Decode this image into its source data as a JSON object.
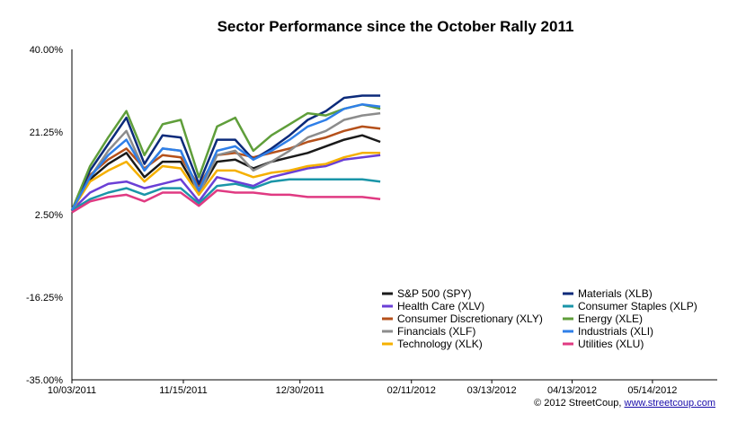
{
  "chart_data": {
    "type": "line",
    "title": "Sector Performance since the October Rally 2011",
    "xlabel": "",
    "ylabel": "",
    "ylim": [
      -35,
      40
    ],
    "y_ticks": [
      "40.00%",
      "21.25%",
      "2.50%",
      "-16.25%",
      "-35.00%"
    ],
    "x_tick_labels": [
      "10/03/2011",
      "11/15/2011",
      "12/30/2011",
      "02/11/2012",
      "03/13/2012",
      "04/13/2012",
      "05/14/2012"
    ],
    "x": [
      "10/03/2011",
      "10/10/2011",
      "10/17/2011",
      "10/24/2011",
      "10/31/2011",
      "11/07/2011",
      "11/14/2011",
      "11/21/2011",
      "11/28/2011",
      "12/05/2011",
      "12/12/2011",
      "12/19/2011",
      "12/26/2011",
      "01/02/2012",
      "01/09/2012",
      "01/16/2012",
      "01/23/2012",
      "01/30/2012"
    ],
    "grid": false,
    "legend_position": "bottom-right",
    "series": [
      {
        "name": "S&P 500 (SPY)",
        "color": "#1a1a1a",
        "values": [
          3.5,
          10.5,
          14.0,
          16.5,
          11.0,
          14.5,
          14.5,
          7.5,
          14.5,
          15.0,
          13.0,
          14.5,
          15.5,
          16.5,
          18.0,
          19.5,
          20.5,
          19.0
        ]
      },
      {
        "name": "Health Care (XLV)",
        "color": "#6a3fd6",
        "values": [
          3.5,
          7.5,
          9.5,
          10.0,
          8.5,
          9.5,
          10.5,
          5.5,
          11.0,
          10.0,
          9.0,
          11.0,
          12.0,
          13.0,
          13.5,
          15.0,
          15.5,
          16.0
        ]
      },
      {
        "name": "Consumer Discretionary (XLY)",
        "color": "#b5501a",
        "values": [
          3.5,
          11.5,
          15.0,
          17.5,
          13.0,
          16.0,
          15.5,
          9.0,
          16.0,
          16.5,
          15.5,
          16.5,
          17.5,
          19.0,
          20.0,
          21.5,
          22.5,
          22.0
        ]
      },
      {
        "name": "Financials (XLF)",
        "color": "#8c8c8c",
        "values": [
          3.5,
          11.0,
          17.0,
          21.5,
          12.5,
          17.5,
          17.0,
          7.0,
          16.0,
          17.0,
          12.5,
          14.5,
          17.0,
          20.0,
          21.5,
          24.0,
          25.0,
          25.5
        ]
      },
      {
        "name": "Technology (XLK)",
        "color": "#f5b000",
        "values": [
          3.5,
          10.0,
          12.5,
          14.5,
          10.0,
          13.5,
          13.0,
          7.0,
          12.5,
          12.5,
          11.0,
          12.0,
          12.5,
          13.5,
          14.0,
          15.5,
          16.5,
          16.5
        ]
      },
      {
        "name": "Materials (XLB)",
        "color": "#0b2a7a",
        "values": [
          3.5,
          12.5,
          18.5,
          24.5,
          14.0,
          20.5,
          20.0,
          9.5,
          19.5,
          19.5,
          15.0,
          17.5,
          20.5,
          24.0,
          26.0,
          29.0,
          29.5,
          29.5
        ]
      },
      {
        "name": "Consumer Staples (XLP)",
        "color": "#1a95a8",
        "values": [
          3.5,
          6.0,
          7.5,
          8.5,
          7.0,
          8.5,
          8.5,
          5.0,
          9.0,
          9.5,
          8.5,
          10.0,
          10.5,
          10.5,
          10.5,
          10.5,
          10.5,
          10.0
        ]
      },
      {
        "name": "Energy (XLE)",
        "color": "#5f9e3a",
        "values": [
          3.5,
          13.5,
          20.0,
          26.0,
          16.0,
          23.0,
          24.0,
          11.0,
          22.5,
          24.5,
          17.0,
          20.5,
          23.0,
          25.5,
          25.0,
          26.5,
          27.5,
          26.5
        ]
      },
      {
        "name": "Industrials (XLI)",
        "color": "#2f7fe8",
        "values": [
          3.5,
          11.0,
          16.0,
          19.5,
          12.5,
          17.5,
          17.0,
          8.0,
          17.0,
          18.0,
          15.0,
          17.0,
          19.5,
          22.5,
          24.0,
          26.5,
          27.5,
          27.0
        ]
      },
      {
        "name": "Utilities (XLU)",
        "color": "#e03a82",
        "values": [
          3.0,
          5.5,
          6.5,
          7.0,
          5.5,
          7.5,
          7.5,
          4.5,
          8.0,
          7.5,
          7.5,
          7.0,
          7.0,
          6.5,
          6.5,
          6.5,
          6.5,
          6.0
        ]
      }
    ]
  },
  "credit": {
    "prefix": "© 2012 StreetCoup, ",
    "link": "www.streetcoup.com"
  }
}
